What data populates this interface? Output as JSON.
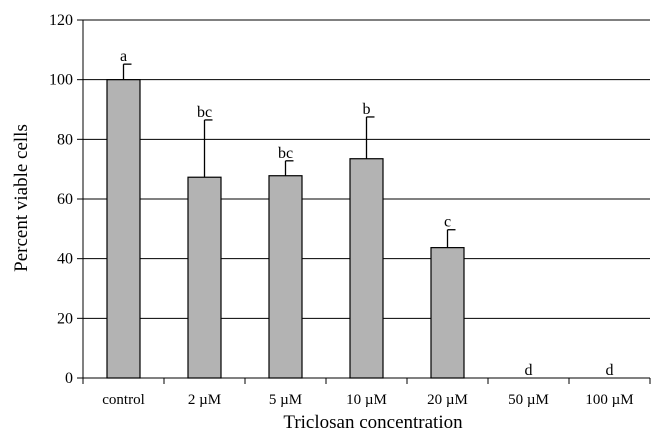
{
  "chart_data": {
    "type": "bar",
    "categories": [
      "control",
      "2 µM",
      "5 µM",
      "10 µM",
      "20 µM",
      "50 µM",
      "100 µM"
    ],
    "values": [
      100,
      67.3,
      67.8,
      73.5,
      43.7,
      0,
      0
    ],
    "errors": [
      5.2,
      19.2,
      5.0,
      14.0,
      6.0,
      0,
      0
    ],
    "significance_labels": [
      "a",
      "bc",
      "bc",
      "b",
      "c",
      "d",
      "d"
    ],
    "xlabel": "Triclosan concentration",
    "ylabel": "Percent viable cells",
    "ylim": [
      0,
      120
    ],
    "yticks": [
      0,
      20,
      40,
      60,
      80,
      100,
      120
    ],
    "grid": true,
    "colors": {
      "bar_fill": "#b3b3b3",
      "bar_stroke": "#000000",
      "gridline": "#000000"
    }
  }
}
